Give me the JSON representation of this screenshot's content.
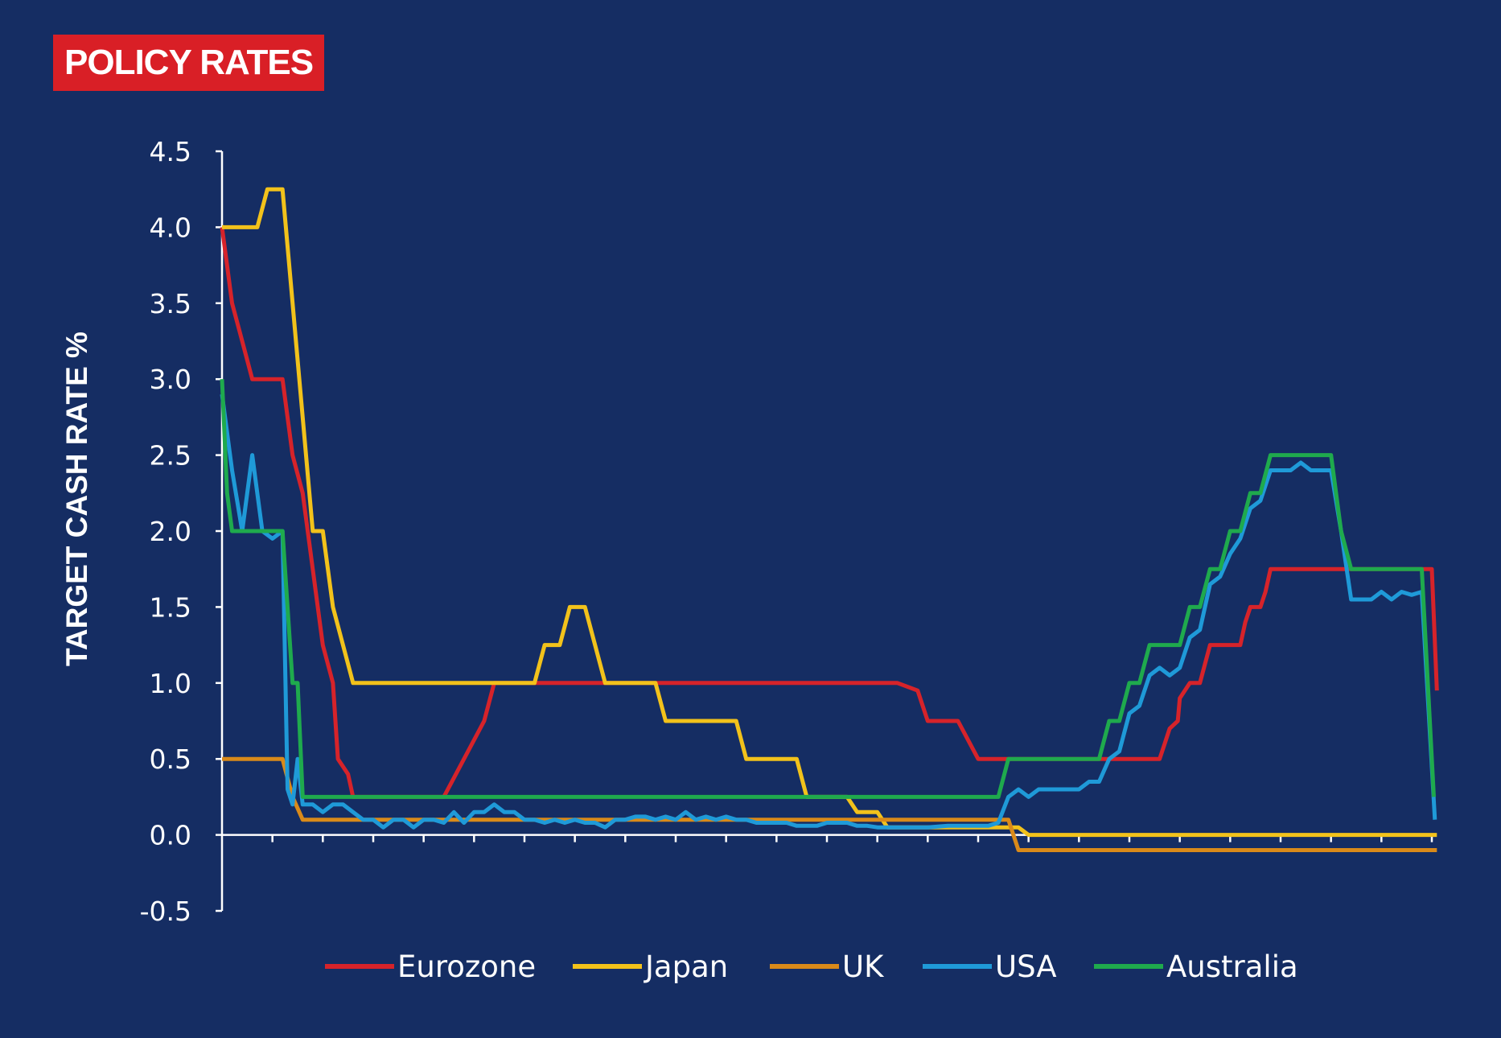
{
  "badge": {
    "title": "POLICY RATES"
  },
  "chart_data": {
    "type": "line",
    "title": "POLICY RATES",
    "ylabel": "TARGET CASH RATE %",
    "xlabel": "",
    "ylim": [
      -0.5,
      4.5
    ],
    "y_ticks": [
      -0.5,
      0.0,
      0.5,
      1.0,
      1.5,
      2.0,
      2.5,
      3.0,
      3.5,
      4.0,
      4.5
    ],
    "y_tick_labels": [
      "-0.5",
      "0.0",
      "0.5",
      "1.0",
      "1.5",
      "2.0",
      "2.5",
      "3.0",
      "3.5",
      "4.0",
      "4.5"
    ],
    "x_range": [
      0,
      120
    ],
    "x_tick_count": 24,
    "grid": false,
    "legend_position": "bottom",
    "background": "#152d63",
    "badge_color": "#d91f26",
    "series": [
      {
        "name": "Eurozone",
        "color": "#d6232a",
        "points": [
          [
            0,
            4.0
          ],
          [
            1,
            3.5
          ],
          [
            2,
            3.25
          ],
          [
            3,
            3.0
          ],
          [
            6,
            3.0
          ],
          [
            7,
            2.5
          ],
          [
            8,
            2.25
          ],
          [
            9,
            1.75
          ],
          [
            10,
            1.25
          ],
          [
            11,
            1.0
          ],
          [
            11.5,
            0.5
          ],
          [
            12.5,
            0.4
          ],
          [
            13,
            0.25
          ],
          [
            22,
            0.25
          ],
          [
            26,
            0.75
          ],
          [
            27,
            1.0
          ],
          [
            67,
            1.0
          ],
          [
            69,
            0.95
          ],
          [
            70,
            0.75
          ],
          [
            73,
            0.75
          ],
          [
            75,
            0.5
          ],
          [
            78,
            0.5
          ],
          [
            88,
            0.5
          ],
          [
            88,
            0.5
          ],
          [
            93,
            0.5
          ],
          [
            93.5,
            0.6
          ],
          [
            94,
            0.7
          ],
          [
            94.8,
            0.75
          ],
          [
            95,
            0.9
          ],
          [
            96,
            1.0
          ],
          [
            97,
            1.0
          ],
          [
            98,
            1.25
          ],
          [
            101,
            1.25
          ],
          [
            101.5,
            1.4
          ],
          [
            102,
            1.5
          ],
          [
            103,
            1.5
          ],
          [
            103.5,
            1.6
          ],
          [
            104,
            1.75
          ],
          [
            115,
            1.75
          ],
          [
            116,
            1.75
          ],
          [
            120,
            1.75
          ],
          [
            120.5,
            0.95
          ]
        ]
      },
      {
        "name": "Japan",
        "color": "#f2c21b",
        "points": [
          [
            0,
            4.0
          ],
          [
            3.5,
            4.0
          ],
          [
            4.5,
            4.25
          ],
          [
            6,
            4.25
          ],
          [
            9,
            2.0
          ],
          [
            10,
            2.0
          ],
          [
            11,
            1.5
          ],
          [
            12,
            1.25
          ],
          [
            13,
            1.0
          ],
          [
            31,
            1.0
          ],
          [
            32,
            1.25
          ],
          [
            33.5,
            1.25
          ],
          [
            34.5,
            1.5
          ],
          [
            36,
            1.5
          ],
          [
            38,
            1.0
          ],
          [
            43,
            1.0
          ],
          [
            44,
            0.75
          ],
          [
            51,
            0.75
          ],
          [
            52,
            0.5
          ],
          [
            57,
            0.5
          ],
          [
            58,
            0.25
          ],
          [
            62,
            0.25
          ],
          [
            63,
            0.15
          ],
          [
            65,
            0.15
          ],
          [
            66,
            0.05
          ],
          [
            79,
            0.05
          ],
          [
            80,
            0.0
          ],
          [
            120.5,
            0.0
          ]
        ]
      },
      {
        "name": "UK",
        "color": "#d98a1a",
        "points": [
          [
            0,
            0.5
          ],
          [
            6,
            0.5
          ],
          [
            7,
            0.25
          ],
          [
            8,
            0.1
          ],
          [
            78,
            0.1
          ],
          [
            79,
            -0.1
          ],
          [
            120.5,
            -0.1
          ]
        ]
      },
      {
        "name": "USA",
        "color": "#1f9ad8",
        "points": [
          [
            0,
            2.9
          ],
          [
            1,
            2.4
          ],
          [
            2,
            2.0
          ],
          [
            3,
            2.5
          ],
          [
            4,
            2.0
          ],
          [
            5,
            1.95
          ],
          [
            6,
            2.0
          ],
          [
            6.5,
            0.3
          ],
          [
            7,
            0.2
          ],
          [
            7.5,
            0.5
          ],
          [
            8,
            0.2
          ],
          [
            9,
            0.2
          ],
          [
            10,
            0.15
          ],
          [
            11,
            0.2
          ],
          [
            12,
            0.2
          ],
          [
            13,
            0.15
          ],
          [
            14,
            0.1
          ],
          [
            15,
            0.1
          ],
          [
            16,
            0.05
          ],
          [
            17,
            0.1
          ],
          [
            18,
            0.1
          ],
          [
            19,
            0.05
          ],
          [
            20,
            0.1
          ],
          [
            21,
            0.1
          ],
          [
            22,
            0.08
          ],
          [
            23,
            0.15
          ],
          [
            24,
            0.08
          ],
          [
            25,
            0.15
          ],
          [
            26,
            0.15
          ],
          [
            27,
            0.2
          ],
          [
            28,
            0.15
          ],
          [
            29,
            0.15
          ],
          [
            30,
            0.1
          ],
          [
            31,
            0.1
          ],
          [
            32,
            0.08
          ],
          [
            33,
            0.1
          ],
          [
            34,
            0.08
          ],
          [
            35,
            0.1
          ],
          [
            36,
            0.08
          ],
          [
            37,
            0.08
          ],
          [
            38,
            0.05
          ],
          [
            39,
            0.1
          ],
          [
            40,
            0.1
          ],
          [
            41,
            0.12
          ],
          [
            42,
            0.12
          ],
          [
            43,
            0.1
          ],
          [
            44,
            0.12
          ],
          [
            45,
            0.1
          ],
          [
            46,
            0.15
          ],
          [
            47,
            0.1
          ],
          [
            48,
            0.12
          ],
          [
            49,
            0.1
          ],
          [
            50,
            0.12
          ],
          [
            51,
            0.1
          ],
          [
            52,
            0.1
          ],
          [
            53,
            0.08
          ],
          [
            54,
            0.08
          ],
          [
            55,
            0.08
          ],
          [
            56,
            0.08
          ],
          [
            57,
            0.06
          ],
          [
            58,
            0.06
          ],
          [
            59,
            0.06
          ],
          [
            60,
            0.08
          ],
          [
            61,
            0.08
          ],
          [
            62,
            0.08
          ],
          [
            63,
            0.06
          ],
          [
            64,
            0.06
          ],
          [
            65,
            0.05
          ],
          [
            66,
            0.05
          ],
          [
            67,
            0.05
          ],
          [
            68,
            0.05
          ],
          [
            70,
            0.05
          ],
          [
            72,
            0.06
          ],
          [
            74,
            0.06
          ],
          [
            76,
            0.06
          ],
          [
            77,
            0.08
          ],
          [
            78,
            0.25
          ],
          [
            79,
            0.3
          ],
          [
            80,
            0.25
          ],
          [
            81,
            0.3
          ],
          [
            82,
            0.3
          ],
          [
            85,
            0.3
          ],
          [
            86,
            0.35
          ],
          [
            87,
            0.35
          ],
          [
            88,
            0.5
          ],
          [
            89,
            0.55
          ],
          [
            90,
            0.8
          ],
          [
            91,
            0.85
          ],
          [
            92,
            1.05
          ],
          [
            93,
            1.1
          ],
          [
            94,
            1.05
          ],
          [
            95,
            1.1
          ],
          [
            96,
            1.3
          ],
          [
            97,
            1.35
          ],
          [
            98,
            1.65
          ],
          [
            99,
            1.7
          ],
          [
            100,
            1.85
          ],
          [
            101,
            1.95
          ],
          [
            102,
            2.15
          ],
          [
            103,
            2.2
          ],
          [
            104,
            2.4
          ],
          [
            106,
            2.4
          ],
          [
            107,
            2.45
          ],
          [
            108,
            2.4
          ],
          [
            110,
            2.4
          ],
          [
            111,
            2.0
          ],
          [
            112,
            1.55
          ],
          [
            114,
            1.55
          ],
          [
            115,
            1.6
          ],
          [
            116,
            1.55
          ],
          [
            117,
            1.6
          ],
          [
            118,
            1.58
          ],
          [
            119,
            1.6
          ],
          [
            120.3,
            0.1
          ]
        ]
      },
      {
        "name": "Australia",
        "color": "#1faa4d",
        "points": [
          [
            0,
            3.0
          ],
          [
            0.5,
            2.25
          ],
          [
            1,
            2.0
          ],
          [
            6,
            2.0
          ],
          [
            7,
            1.0
          ],
          [
            7.5,
            1.0
          ],
          [
            8,
            0.25
          ],
          [
            77,
            0.25
          ],
          [
            78,
            0.5
          ],
          [
            87,
            0.5
          ],
          [
            88,
            0.75
          ],
          [
            89,
            0.75
          ],
          [
            90,
            1.0
          ],
          [
            91,
            1.0
          ],
          [
            92,
            1.25
          ],
          [
            95,
            1.25
          ],
          [
            96,
            1.5
          ],
          [
            97,
            1.5
          ],
          [
            98,
            1.75
          ],
          [
            99,
            1.75
          ],
          [
            100,
            2.0
          ],
          [
            101,
            2.0
          ],
          [
            102,
            2.25
          ],
          [
            103,
            2.25
          ],
          [
            104,
            2.5
          ],
          [
            110,
            2.5
          ],
          [
            111,
            2.0
          ],
          [
            112,
            1.75
          ],
          [
            115,
            1.75
          ],
          [
            119,
            1.75
          ],
          [
            120.2,
            0.25
          ]
        ]
      }
    ]
  }
}
